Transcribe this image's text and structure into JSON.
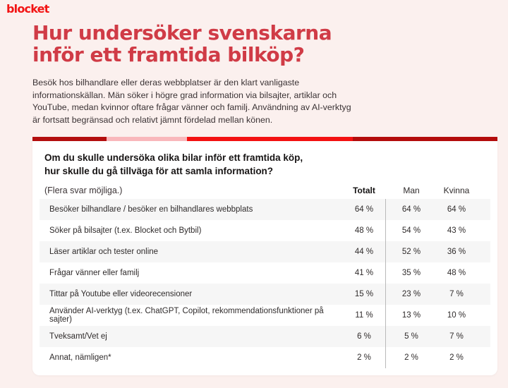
{
  "brand": {
    "logo_text": "blocket"
  },
  "page": {
    "title_line1": "Hur undersöker svenskarna",
    "title_line2": "inför ett framtida bilköp?",
    "intro_lines": [
      "Besök hos bilhandlare eller deras webbplatser är den klart vanligaste",
      "informationskällan. Män söker i högre grad information via bilsajter, artiklar och",
      "YouTube, medan kvinnor oftare frågar vänner och familj. Användning av AI-verktyg",
      "är fortsatt begränsad och relativt jämnt fördelad mellan könen."
    ]
  },
  "colors": {
    "brand_red": "#f21414",
    "heading_red": "#d03b46",
    "page_background": "#fbf0ee",
    "card_background": "#ffffff",
    "row_alt_background": "#f6f6f6",
    "stripe_segments": [
      "#b30e0e",
      "#f9b7bb",
      "#f31111",
      "#b30c0c"
    ]
  },
  "card": {
    "question_line1": "Om du skulle undersöka olika bilar inför ett framtida köp,",
    "question_line2": "hur skulle du gå tillväga för att samla information?",
    "question_note": "(Flera svar möjliga.)",
    "columns": [
      "Totalt",
      "Man",
      "Kvinna"
    ],
    "rows": [
      {
        "label": "Besöker bilhandlare / besöker en bilhandlares webbplats",
        "totalt": "64 %",
        "man": "64 %",
        "kvinna": "64 %"
      },
      {
        "label": "Söker på bilsajter (t.ex. Blocket och Bytbil)",
        "totalt": "48 %",
        "man": "54 %",
        "kvinna": "43 %"
      },
      {
        "label": "Läser artiklar och tester online",
        "totalt": "44 %",
        "man": "52 %",
        "kvinna": "36 %"
      },
      {
        "label": "Frågar vänner eller familj",
        "totalt": "41 %",
        "man": "35 %",
        "kvinna": "48 %"
      },
      {
        "label": "Tittar på Youtube eller videorecensioner",
        "totalt": "15 %",
        "man": "23 %",
        "kvinna": "7 %"
      },
      {
        "label": "Använder AI-verktyg (t.ex. ChatGPT, Copilot, rekommendationsfunktioner på sajter)",
        "totalt": "11 %",
        "man": "13 %",
        "kvinna": "10 %"
      },
      {
        "label": "Tveksamt/Vet ej",
        "totalt": "6 %",
        "man": "5 %",
        "kvinna": "7 %"
      },
      {
        "label": "Annat, nämligen*",
        "totalt": "2 %",
        "man": "2 %",
        "kvinna": "2 %"
      }
    ]
  },
  "chart_data": {
    "type": "table",
    "title": "Om du skulle undersöka olika bilar inför ett framtida köp, hur skulle du gå tillväga för att samla information? (Flera svar möjliga.)",
    "unit": "%",
    "categories": [
      "Besöker bilhandlare / besöker en bilhandlares webbplats",
      "Söker på bilsajter (t.ex. Blocket och Bytbil)",
      "Läser artiklar och tester online",
      "Frågar vänner eller familj",
      "Tittar på Youtube eller videorecensioner",
      "Använder AI-verktyg (t.ex. ChatGPT, Copilot, rekommendationsfunktioner på sajter)",
      "Tveksamt/Vet ej",
      "Annat, nämligen*"
    ],
    "series": [
      {
        "name": "Totalt",
        "values": [
          64,
          48,
          44,
          41,
          15,
          11,
          6,
          2
        ]
      },
      {
        "name": "Man",
        "values": [
          64,
          54,
          52,
          35,
          23,
          13,
          5,
          2
        ]
      },
      {
        "name": "Kvinna",
        "values": [
          64,
          43,
          36,
          48,
          7,
          10,
          7,
          2
        ]
      }
    ]
  }
}
